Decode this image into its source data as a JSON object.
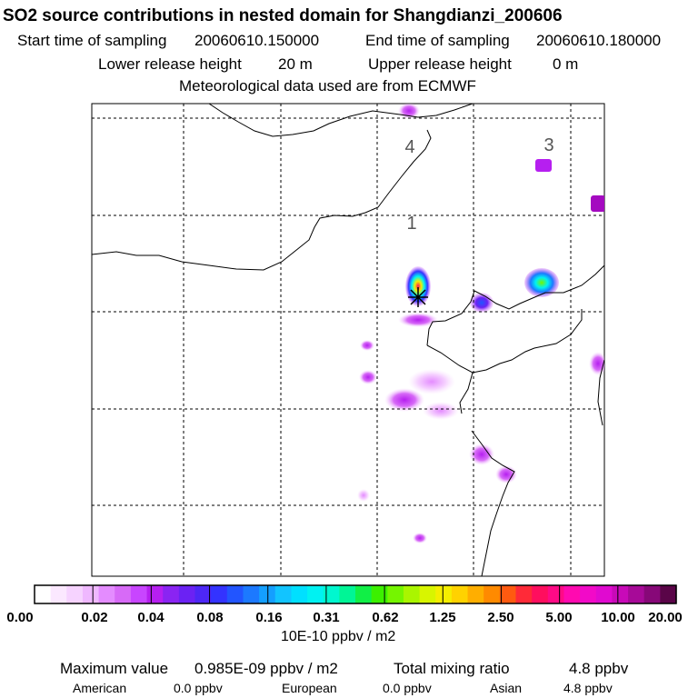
{
  "header": {
    "title": "SO2 source contributions in nested domain for Shangdianzi_200606",
    "start_label": "Start time of sampling",
    "start_value": "20060610.150000",
    "end_label": "End time of sampling",
    "end_value": "20060610.180000",
    "lower_label": "Lower release height",
    "lower_value": "20 m",
    "upper_label": "Upper release height",
    "upper_value": "0 m",
    "met_note": "Meteorological data used are from ECMWF"
  },
  "map": {
    "region_labels": [
      "4",
      "3",
      "1"
    ],
    "marker": "receptor-star",
    "plume_color_max": "#00d6d6",
    "plume_color_low": "#f3c6ff"
  },
  "legend": {
    "tick_labels": [
      "0.00",
      "0.02",
      "0.04",
      "0.08",
      "0.16",
      "0.31",
      "0.62",
      "1.25",
      "2.50",
      "5.00",
      "10.00",
      "20.00"
    ],
    "colors": [
      "#ffffff",
      "#fbe8ff",
      "#f6d3ff",
      "#efb8ff",
      "#e48cff",
      "#d76af7",
      "#c845ff",
      "#b61ff0",
      "#8a24f2",
      "#6b22f3",
      "#4d27f5",
      "#3333ff",
      "#2255ff",
      "#1c79ff",
      "#149fff",
      "#12c4ff",
      "#00e0ff",
      "#00f2f2",
      "#00f7cf",
      "#00f596",
      "#11ef46",
      "#3cf000",
      "#75f500",
      "#aaf500",
      "#d8f500",
      "#f5ee00",
      "#ffd200",
      "#ffae00",
      "#ff8a00",
      "#ff5a10",
      "#ff2a38",
      "#ff0e5e",
      "#ff0a86",
      "#ff0ab0",
      "#f20ac8",
      "#e00ad0",
      "#c80ab8",
      "#a70a98",
      "#870878",
      "#5a0548"
    ],
    "unit": "10E-10 ppbv / m2"
  },
  "footer": {
    "max_label": "Maximum value",
    "max_value": "0.985E-09 ppbv / m2",
    "total_label": "Total mixing ratio",
    "total_value": "4.8 ppbv",
    "american_label": "American",
    "american_value": "0.0 ppbv",
    "european_label": "European",
    "european_value": "0.0 ppbv",
    "asian_label": "Asian",
    "asian_value": "4.8 ppbv"
  }
}
